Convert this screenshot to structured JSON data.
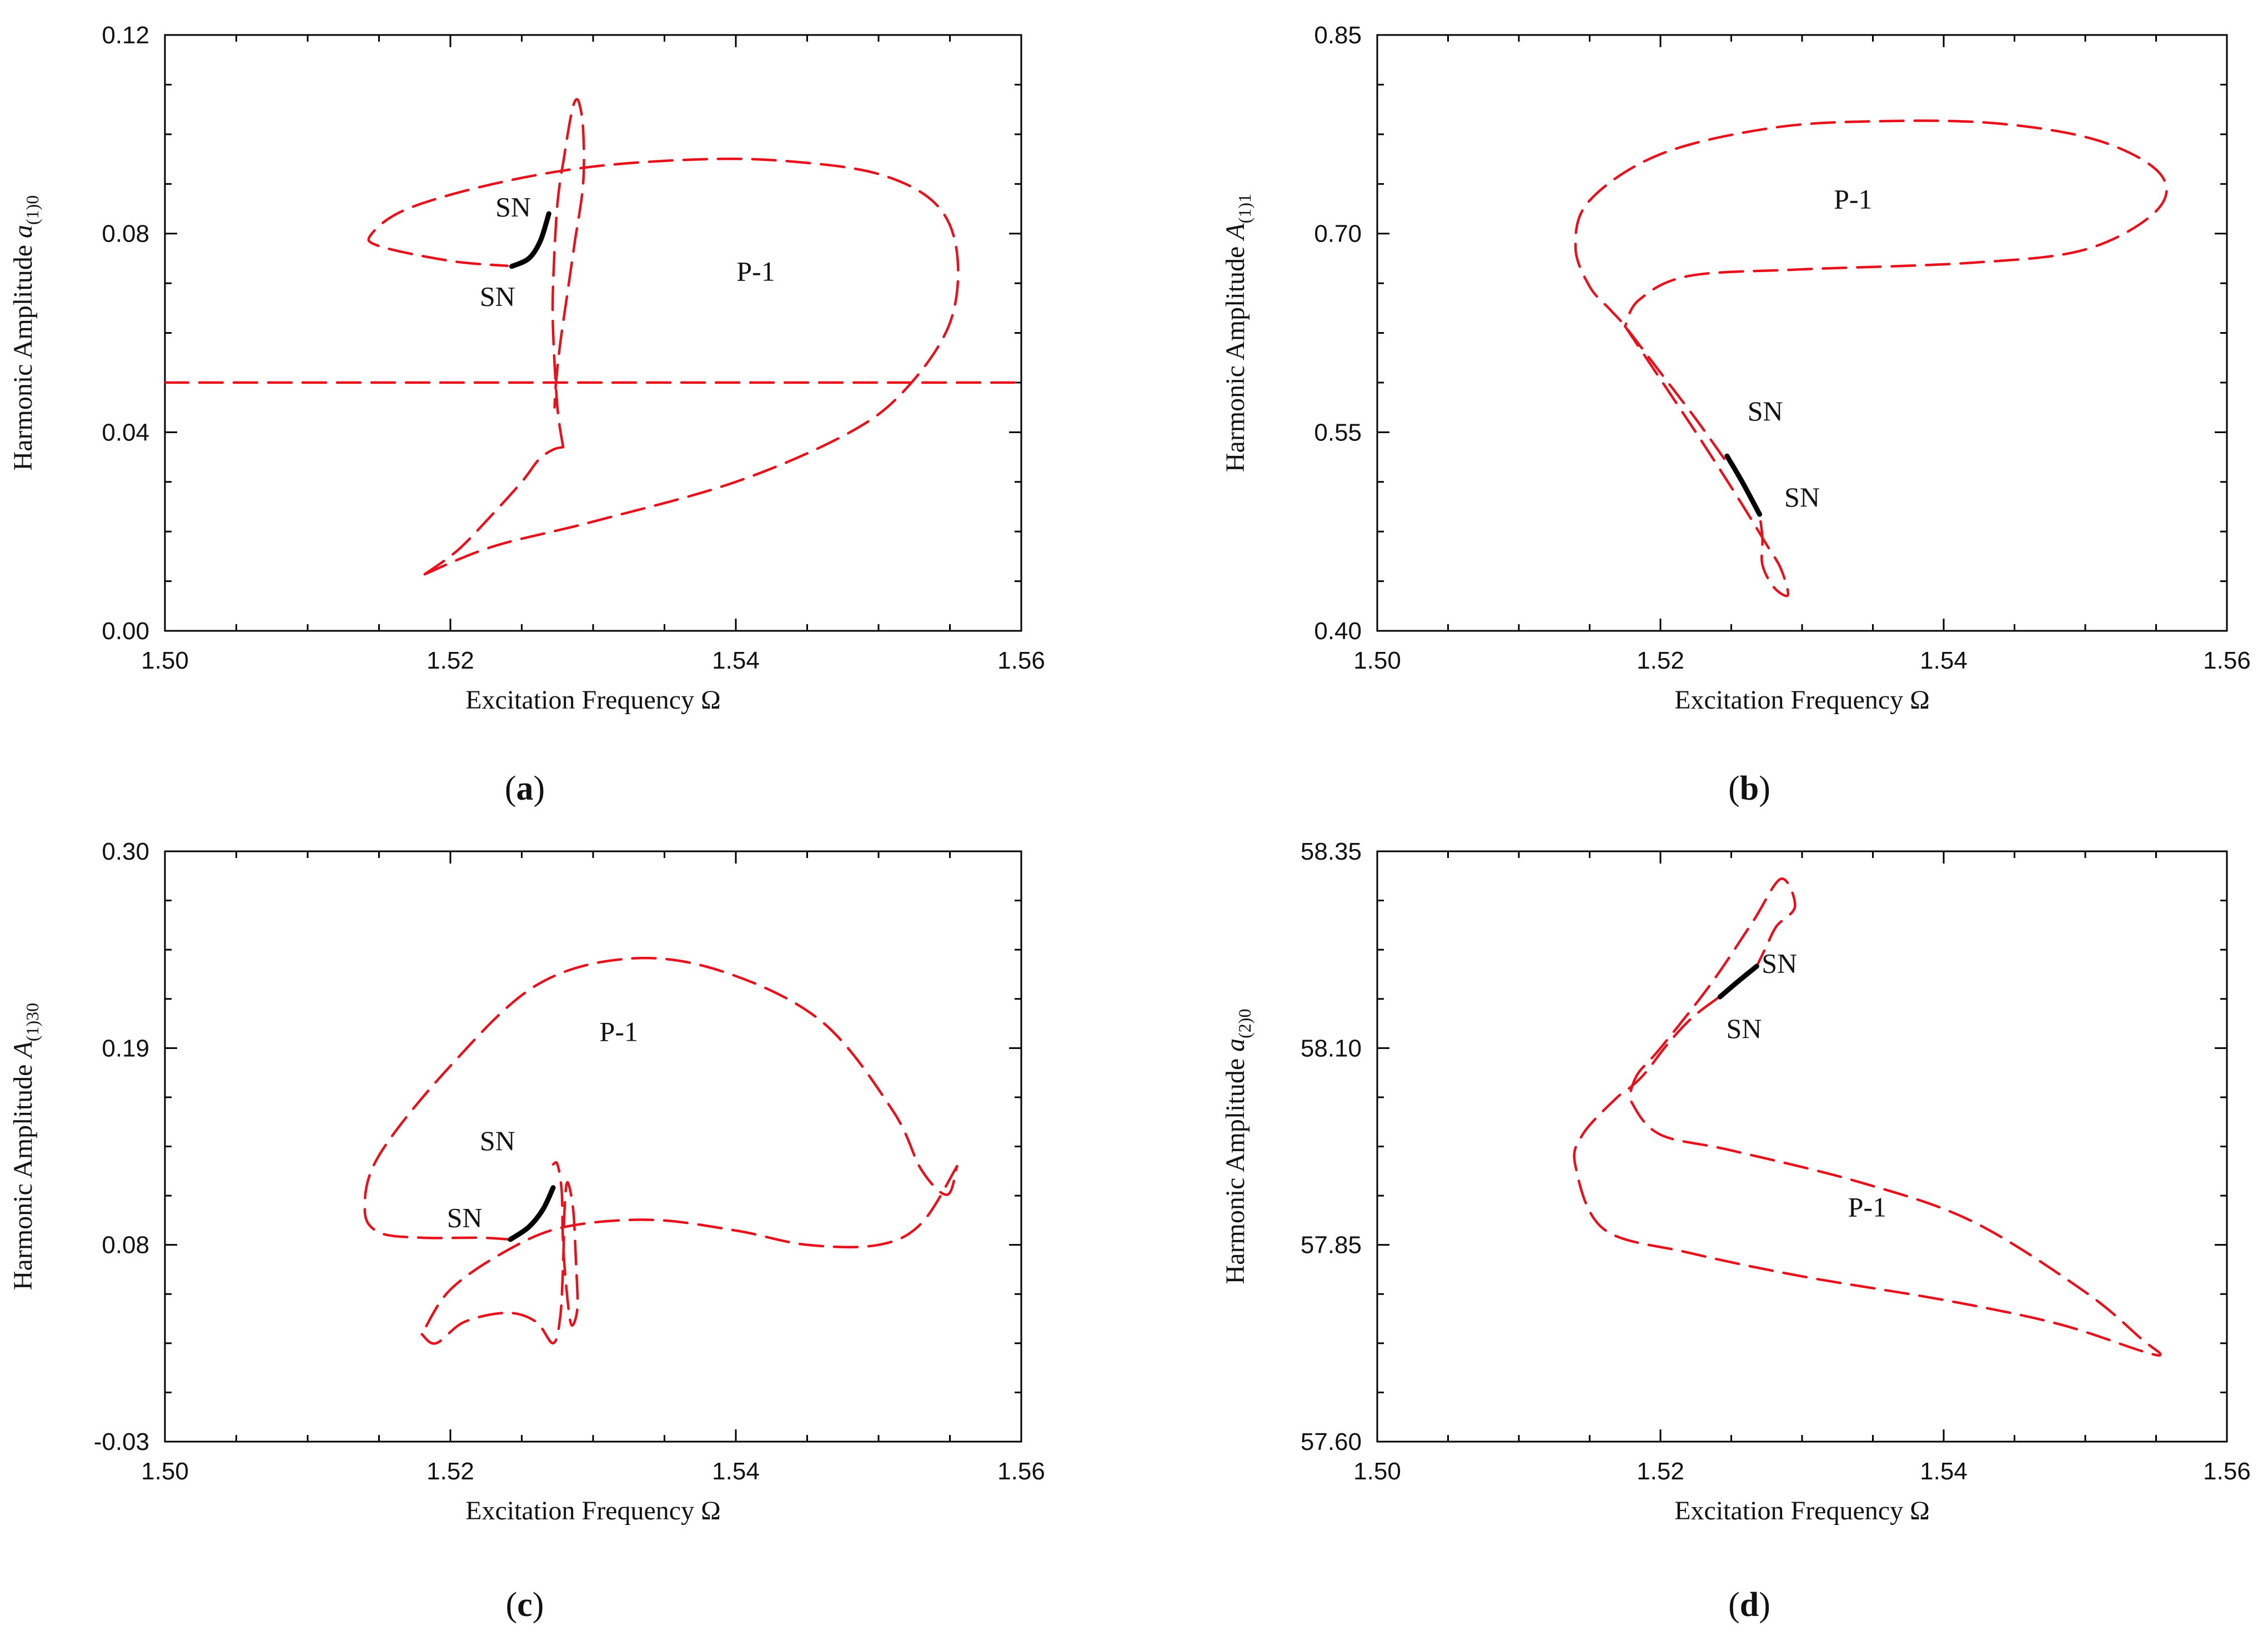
{
  "figure": {
    "description_labels": [
      "(a)",
      "(b)",
      "(c)",
      "(d)"
    ]
  },
  "colors": {
    "unstable": "#e8101a",
    "stable": "#000000",
    "axis": "#000000"
  },
  "chart_data": [
    {
      "id": "a",
      "type": "line",
      "panel_label": "a",
      "xlabel": "Excitation Frequency  Ω",
      "ylabel_main": "Harmonic Amplitude ",
      "ylabel_var": "a",
      "ylabel_sub": "(1)0",
      "xlim": [
        1.5,
        1.56
      ],
      "ylim": [
        0.0,
        0.12
      ],
      "xticks": [
        "1.50",
        "1.52",
        "1.54",
        "1.56"
      ],
      "yticks": [
        "0.00",
        "0.04",
        "0.08",
        "0.12"
      ],
      "series": [
        {
          "name": "unstable",
          "style": "dashed",
          "points": [
            [
              1.5182,
              0.0114
            ],
            [
              1.5205,
              0.0162
            ],
            [
              1.5228,
              0.023
            ],
            [
              1.525,
              0.03
            ],
            [
              1.5262,
              0.0345
            ],
            [
              1.5272,
              0.0365
            ],
            [
              1.5279,
              0.037
            ]
          ]
        },
        {
          "name": "unstable",
          "style": "dashed",
          "points": [
            [
              1.5279,
              0.037
            ],
            [
              1.5275,
              0.045
            ],
            [
              1.5272,
              0.06
            ],
            [
              1.5272,
              0.07
            ],
            [
              1.5275,
              0.086
            ],
            [
              1.528,
              0.096
            ],
            [
              1.5284,
              0.103
            ],
            [
              1.5287,
              0.1065
            ],
            [
              1.529,
              0.1065
            ],
            [
              1.5293,
              0.101
            ],
            [
              1.5293,
              0.09
            ],
            [
              1.5287,
              0.078
            ],
            [
              1.5282,
              0.068
            ],
            [
              1.5277,
              0.058
            ],
            [
              1.5274,
              0.05
            ],
            [
              1.5273,
              0.045
            ]
          ]
        },
        {
          "name": "unstable",
          "style": "dashed",
          "points": [
            [
              1.5182,
              0.0114
            ],
            [
              1.523,
              0.017
            ],
            [
              1.53,
              0.022
            ],
            [
              1.54,
              0.03
            ],
            [
              1.548,
              0.04
            ],
            [
              1.552,
              0.049
            ],
            [
              1.555,
              0.062
            ],
            [
              1.5555,
              0.076
            ],
            [
              1.554,
              0.086
            ],
            [
              1.55,
              0.092
            ],
            [
              1.544,
              0.0945
            ],
            [
              1.538,
              0.095
            ],
            [
              1.53,
              0.0935
            ],
            [
              1.523,
              0.09
            ],
            [
              1.517,
              0.085
            ],
            [
              1.5145,
              0.08
            ],
            [
              1.515,
              0.0775
            ],
            [
              1.52,
              0.0745
            ],
            [
              1.524,
              0.0735
            ]
          ]
        },
        {
          "name": "unstable",
          "style": "dashed",
          "points": [
            [
              1.5,
              0.05
            ],
            [
              1.56,
              0.05
            ]
          ]
        },
        {
          "name": "stable",
          "style": "solid",
          "points": [
            [
              1.5243,
              0.0734
            ],
            [
              1.5255,
              0.075
            ],
            [
              1.5263,
              0.0785
            ],
            [
              1.5269,
              0.084
            ]
          ]
        }
      ],
      "annotations": [
        {
          "text": "SN",
          "x": 1.5244,
          "y": 0.0835
        },
        {
          "text": "SN",
          "x": 1.5233,
          "y": 0.0655
        },
        {
          "text": "P-1",
          "x": 1.5414,
          "y": 0.0705
        }
      ]
    },
    {
      "id": "b",
      "type": "line",
      "panel_label": "b",
      "xlabel": "Excitation Frequency  Ω",
      "ylabel_main": "Harmonic Amplitude ",
      "ylabel_var": "A",
      "ylabel_sub": "(1)1",
      "xlim": [
        1.5,
        1.56
      ],
      "ylim": [
        0.4,
        0.85
      ],
      "xticks": [
        "1.50",
        "1.52",
        "1.54",
        "1.56"
      ],
      "yticks": [
        "0.40",
        "0.55",
        "0.70",
        "0.85"
      ],
      "series": [
        {
          "name": "unstable",
          "style": "dashed",
          "points": [
            [
              1.5245,
              0.53
            ],
            [
              1.5225,
              0.56
            ],
            [
              1.52,
              0.595
            ],
            [
              1.5175,
              0.63
            ],
            [
              1.5165,
              0.642
            ],
            [
              1.515,
              0.66
            ],
            [
              1.514,
              0.69
            ],
            [
              1.515,
              0.725
            ],
            [
              1.52,
              0.76
            ],
            [
              1.528,
              0.78
            ],
            [
              1.536,
              0.785
            ],
            [
              1.544,
              0.783
            ],
            [
              1.551,
              0.77
            ],
            [
              1.5553,
              0.745
            ],
            [
              1.555,
              0.717
            ],
            [
              1.55,
              0.688
            ],
            [
              1.542,
              0.678
            ],
            [
              1.53,
              0.673
            ],
            [
              1.522,
              0.668
            ],
            [
              1.5185,
              0.65
            ],
            [
              1.5175,
              0.63
            ]
          ]
        },
        {
          "name": "unstable",
          "style": "dashed",
          "points": [
            [
              1.5175,
              0.63
            ],
            [
              1.52,
              0.59
            ],
            [
              1.5228,
              0.545
            ],
            [
              1.5255,
              0.5
            ],
            [
              1.5275,
              0.465
            ],
            [
              1.5285,
              0.447
            ],
            [
              1.529,
              0.427
            ],
            [
              1.528,
              0.433
            ],
            [
              1.5272,
              0.45
            ],
            [
              1.5272,
              0.47
            ],
            [
              1.527,
              0.488
            ]
          ]
        },
        {
          "name": "stable",
          "style": "solid",
          "points": [
            [
              1.5247,
              0.532
            ],
            [
              1.5258,
              0.512
            ],
            [
              1.527,
              0.488
            ]
          ]
        }
      ],
      "annotations": [
        {
          "text": "SN",
          "x": 1.5274,
          "y": 0.559
        },
        {
          "text": "SN",
          "x": 1.53,
          "y": 0.494
        },
        {
          "text": "P-1",
          "x": 1.5336,
          "y": 0.719
        }
      ]
    },
    {
      "id": "c",
      "type": "line",
      "panel_label": "c",
      "xlabel": "Excitation Frequency  Ω",
      "ylabel_main": "Harmonic Amplitude ",
      "ylabel_var": "A",
      "ylabel_sub": "(1)30",
      "xlim": [
        1.5,
        1.56
      ],
      "ylim": [
        -0.03,
        0.3
      ],
      "xticks": [
        "1.50",
        "1.52",
        "1.54",
        "1.56"
      ],
      "yticks": [
        "-0.03",
        "0.08",
        "0.19",
        "0.30"
      ],
      "series": [
        {
          "name": "unstable",
          "style": "dashed",
          "points": [
            [
              1.5242,
              0.083
            ],
            [
              1.522,
              0.084
            ],
            [
              1.518,
              0.084
            ],
            [
              1.515,
              0.087
            ],
            [
              1.514,
              0.1
            ],
            [
              1.515,
              0.13
            ],
            [
              1.52,
              0.18
            ],
            [
              1.526,
              0.225
            ],
            [
              1.5325,
              0.24
            ],
            [
              1.539,
              0.233
            ],
            [
              1.546,
              0.205
            ],
            [
              1.551,
              0.155
            ],
            [
              1.553,
              0.122
            ],
            [
              1.5548,
              0.108
            ],
            [
              1.5555,
              0.124
            ]
          ]
        },
        {
          "name": "unstable",
          "style": "dashed",
          "points": [
            [
              1.5555,
              0.124
            ],
            [
              1.553,
              0.092
            ],
            [
              1.55,
              0.08
            ],
            [
              1.545,
              0.08
            ],
            [
              1.54,
              0.088
            ],
            [
              1.534,
              0.094
            ],
            [
              1.528,
              0.09
            ],
            [
              1.524,
              0.077
            ],
            [
              1.52,
              0.055
            ],
            [
              1.518,
              0.03
            ]
          ]
        },
        {
          "name": "unstable",
          "style": "dashed",
          "points": [
            [
              1.518,
              0.03
            ],
            [
              1.519,
              0.025
            ],
            [
              1.521,
              0.037
            ],
            [
              1.524,
              0.042
            ],
            [
              1.526,
              0.037
            ],
            [
              1.5272,
              0.025
            ],
            [
              1.5277,
              0.04
            ],
            [
              1.5279,
              0.07
            ],
            [
              1.528,
              0.1
            ],
            [
              1.5282,
              0.115
            ],
            [
              1.5286,
              0.1
            ],
            [
              1.5288,
              0.07
            ],
            [
              1.5289,
              0.045
            ],
            [
              1.5285,
              0.035
            ],
            [
              1.5282,
              0.05
            ],
            [
              1.5279,
              0.08
            ],
            [
              1.5278,
              0.11
            ],
            [
              1.5275,
              0.125
            ],
            [
              1.5272,
              0.125
            ]
          ]
        },
        {
          "name": "stable",
          "style": "solid",
          "points": [
            [
              1.5242,
              0.083
            ],
            [
              1.5255,
              0.09
            ],
            [
              1.5265,
              0.1
            ],
            [
              1.5272,
              0.112
            ]
          ]
        }
      ],
      "annotations": [
        {
          "text": "SN",
          "x": 1.5233,
          "y": 0.133
        },
        {
          "text": "SN",
          "x": 1.521,
          "y": 0.09
        },
        {
          "text": "P-1",
          "x": 1.5318,
          "y": 0.194
        }
      ]
    },
    {
      "id": "d",
      "type": "line",
      "panel_label": "d",
      "xlabel": "Excitation Frequency  Ω",
      "ylabel_main": "Harmonic Amplitude ",
      "ylabel_var": "a",
      "ylabel_sub": "(2)0",
      "xlim": [
        1.5,
        1.56
      ],
      "ylim": [
        57.6,
        58.35
      ],
      "xticks": [
        "1.50",
        "1.52",
        "1.54",
        "1.56"
      ],
      "yticks": [
        "57.60",
        "57.85",
        "58.10",
        "58.35"
      ],
      "series": [
        {
          "name": "unstable",
          "style": "dashed",
          "points": [
            [
              1.524,
              58.163
            ],
            [
              1.5222,
              58.138
            ],
            [
              1.5205,
              58.105
            ],
            [
              1.519,
              58.07
            ],
            [
              1.518,
              58.052
            ],
            [
              1.5168,
              58.035
            ],
            [
              1.5145,
              57.99
            ],
            [
              1.514,
              57.95
            ],
            [
              1.516,
              57.87
            ],
            [
              1.522,
              57.84
            ],
            [
              1.53,
              57.81
            ],
            [
              1.54,
              57.78
            ],
            [
              1.548,
              57.75
            ],
            [
              1.554,
              57.715
            ],
            [
              1.5553,
              57.711
            ],
            [
              1.554,
              57.73
            ],
            [
              1.55,
              57.79
            ],
            [
              1.542,
              57.88
            ],
            [
              1.534,
              57.93
            ],
            [
              1.525,
              57.97
            ],
            [
              1.52,
              57.99
            ],
            [
              1.518,
              58.03
            ],
            [
              1.518,
              58.052
            ]
          ]
        },
        {
          "name": "unstable",
          "style": "dashed",
          "points": [
            [
              1.518,
              58.052
            ],
            [
              1.5185,
              58.07
            ],
            [
              1.52,
              58.1
            ],
            [
              1.5235,
              58.18
            ],
            [
              1.5265,
              58.26
            ],
            [
              1.5285,
              58.315
            ],
            [
              1.5295,
              58.28
            ],
            [
              1.5282,
              58.255
            ],
            [
              1.5275,
              58.23
            ],
            [
              1.5268,
              58.204
            ]
          ]
        },
        {
          "name": "stable",
          "style": "solid",
          "points": [
            [
              1.5242,
              58.165
            ],
            [
              1.5255,
              58.185
            ],
            [
              1.5268,
              58.204
            ]
          ]
        }
      ],
      "annotations": [
        {
          "text": "SN",
          "x": 1.5284,
          "y": 58.196
        },
        {
          "text": "SN",
          "x": 1.5259,
          "y": 58.113
        },
        {
          "text": "P-1",
          "x": 1.5346,
          "y": 57.886
        }
      ]
    }
  ]
}
